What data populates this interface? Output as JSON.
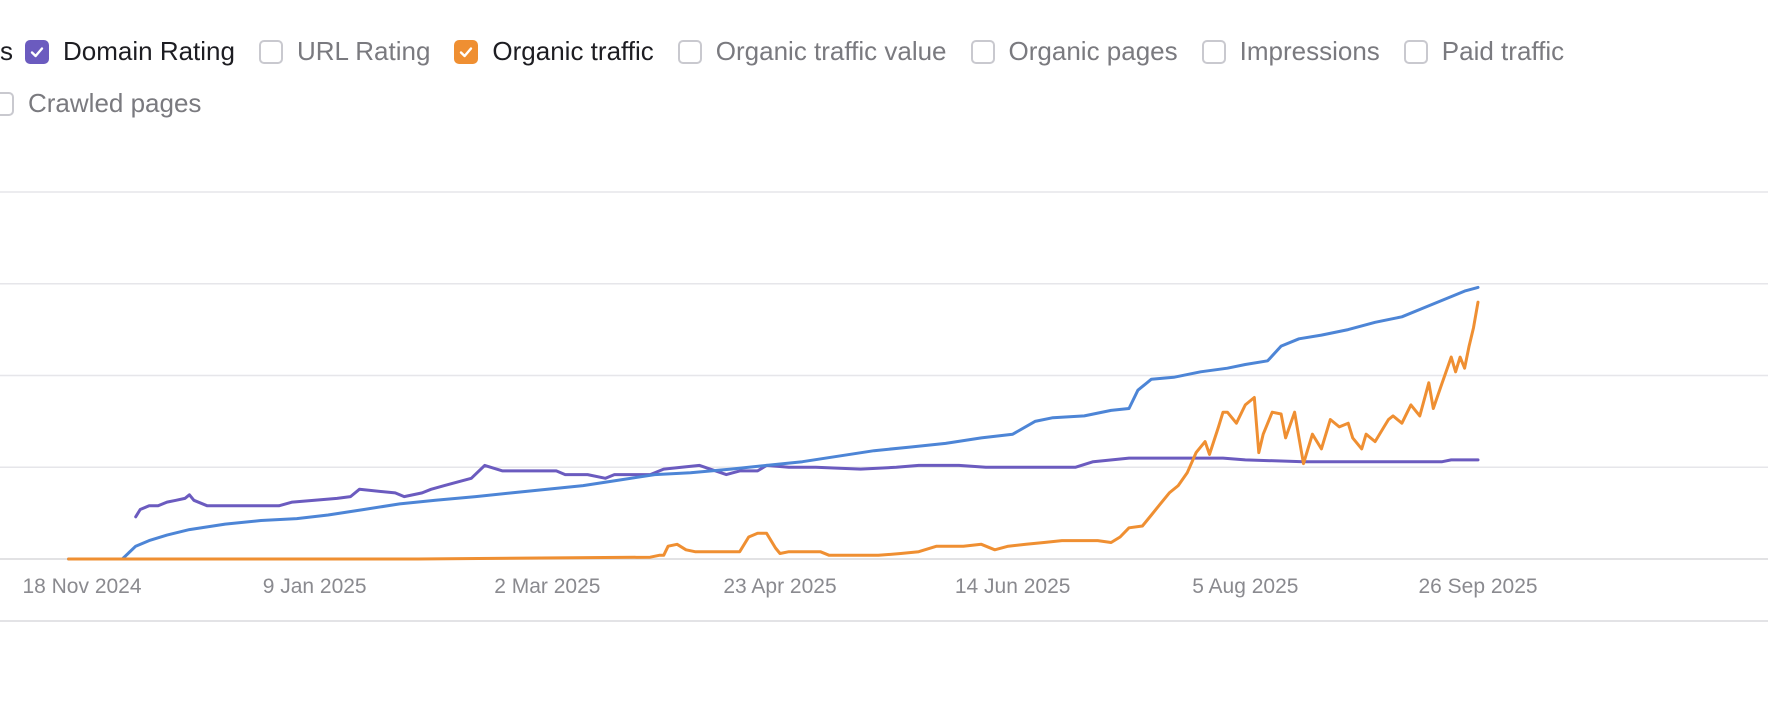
{
  "legend": {
    "partial_left_label": "s",
    "items": [
      {
        "label": "Domain Rating",
        "checked": true,
        "color": "#6b5bbf",
        "icon": "checkbox-icon"
      },
      {
        "label": "URL Rating",
        "checked": false,
        "icon": "checkbox-icon"
      },
      {
        "label": "Organic traffic",
        "checked": true,
        "color": "#ef8f32",
        "icon": "checkbox-icon"
      },
      {
        "label": "Organic traffic value",
        "checked": false,
        "icon": "checkbox-icon"
      },
      {
        "label": "Organic pages",
        "checked": false,
        "icon": "checkbox-icon"
      },
      {
        "label": "Impressions",
        "checked": false,
        "icon": "checkbox-icon"
      },
      {
        "label": "Paid traffic",
        "checked": false,
        "icon": "checkbox-icon"
      },
      {
        "label": "Crawled pages",
        "checked": false,
        "icon": "checkbox-icon"
      }
    ]
  },
  "chart_data": {
    "type": "line",
    "x_ticks": [
      "18 Nov 2024",
      "9 Jan 2025",
      "2 Mar 2025",
      "23 Apr 2025",
      "14 Jun 2025",
      "5 Aug 2025",
      "26 Sep 2025"
    ],
    "gridlines": 5,
    "y_axis_labels_visible": false,
    "ylim": [
      0,
      100
    ],
    "series": [
      {
        "color": "#6b5bbf",
        "width": 3,
        "points": [
          [
            "2024-11-30",
            11.5
          ],
          [
            "2024-12-01",
            13.5
          ],
          [
            "2024-12-03",
            14.5
          ],
          [
            "2024-12-05",
            14.5
          ],
          [
            "2024-12-07",
            15.5
          ],
          [
            "2024-12-09",
            16
          ],
          [
            "2024-12-11",
            16.5
          ],
          [
            "2024-12-12",
            17.5
          ],
          [
            "2024-12-13",
            16
          ],
          [
            "2024-12-16",
            14.5
          ],
          [
            "2025-01-01",
            14.5
          ],
          [
            "2025-01-04",
            15.5
          ],
          [
            "2025-01-09",
            16
          ],
          [
            "2025-01-14",
            16.5
          ],
          [
            "2025-01-17",
            17
          ],
          [
            "2025-01-19",
            19
          ],
          [
            "2025-01-27",
            18
          ],
          [
            "2025-01-29",
            17
          ],
          [
            "2025-02-02",
            18
          ],
          [
            "2025-02-04",
            19
          ],
          [
            "2025-02-07",
            20
          ],
          [
            "2025-02-10",
            21
          ],
          [
            "2025-02-13",
            22
          ],
          [
            "2025-02-16",
            25.5
          ],
          [
            "2025-02-20",
            24
          ],
          [
            "2025-02-24",
            24
          ],
          [
            "2025-03-04",
            24
          ],
          [
            "2025-03-06",
            23
          ],
          [
            "2025-03-08",
            23
          ],
          [
            "2025-03-11",
            23
          ],
          [
            "2025-03-15",
            22
          ],
          [
            "2025-03-17",
            23
          ],
          [
            "2025-03-20",
            23
          ],
          [
            "2025-03-25",
            23
          ],
          [
            "2025-03-28",
            24.5
          ],
          [
            "2025-04-05",
            25.5
          ],
          [
            "2025-04-11",
            23
          ],
          [
            "2025-04-14",
            24
          ],
          [
            "2025-04-18",
            24
          ],
          [
            "2025-04-20",
            25.5
          ],
          [
            "2025-04-25",
            25
          ],
          [
            "2025-05-01",
            25
          ],
          [
            "2025-05-11",
            24.5
          ],
          [
            "2025-05-19",
            25
          ],
          [
            "2025-05-24",
            25.5
          ],
          [
            "2025-06-02",
            25.5
          ],
          [
            "2025-06-08",
            25
          ],
          [
            "2025-06-17",
            25
          ],
          [
            "2025-06-25",
            25
          ],
          [
            "2025-06-28",
            25
          ],
          [
            "2025-07-02",
            26.5
          ],
          [
            "2025-07-10",
            27.5
          ],
          [
            "2025-07-21",
            27.5
          ],
          [
            "2025-07-31",
            27.5
          ],
          [
            "2025-08-05",
            27
          ],
          [
            "2025-08-18",
            26.5
          ],
          [
            "2025-08-28",
            26.5
          ],
          [
            "2025-09-07",
            26.5
          ],
          [
            "2025-09-18",
            26.5
          ],
          [
            "2025-09-20",
            27
          ],
          [
            "2025-09-26",
            27
          ]
        ]
      },
      {
        "color": "#4d85d6",
        "width": 3,
        "points": [
          [
            "2024-11-15",
            0
          ],
          [
            "2024-11-27",
            0
          ],
          [
            "2024-11-30",
            3.5
          ],
          [
            "2024-12-03",
            5
          ],
          [
            "2024-12-07",
            6.5
          ],
          [
            "2024-12-12",
            8
          ],
          [
            "2024-12-20",
            9.5
          ],
          [
            "2024-12-28",
            10.5
          ],
          [
            "2025-01-05",
            11
          ],
          [
            "2025-01-12",
            12
          ],
          [
            "2025-01-20",
            13.5
          ],
          [
            "2025-01-28",
            15
          ],
          [
            "2025-02-05",
            16
          ],
          [
            "2025-02-14",
            17
          ],
          [
            "2025-02-22",
            18
          ],
          [
            "2025-03-02",
            19
          ],
          [
            "2025-03-10",
            20
          ],
          [
            "2025-03-18",
            21.5
          ],
          [
            "2025-03-26",
            23
          ],
          [
            "2025-04-03",
            23.5
          ],
          [
            "2025-04-12",
            24.5
          ],
          [
            "2025-04-20",
            25.5
          ],
          [
            "2025-04-28",
            26.5
          ],
          [
            "2025-05-06",
            28
          ],
          [
            "2025-05-14",
            29.5
          ],
          [
            "2025-05-22",
            30.5
          ],
          [
            "2025-05-30",
            31.5
          ],
          [
            "2025-06-07",
            33
          ],
          [
            "2025-06-14",
            34
          ],
          [
            "2025-06-19",
            37.5
          ],
          [
            "2025-06-23",
            38.5
          ],
          [
            "2025-06-30",
            39
          ],
          [
            "2025-07-06",
            40.5
          ],
          [
            "2025-07-10",
            41
          ],
          [
            "2025-07-12",
            46
          ],
          [
            "2025-07-15",
            49
          ],
          [
            "2025-07-20",
            49.5
          ],
          [
            "2025-07-26",
            51
          ],
          [
            "2025-08-01",
            52
          ],
          [
            "2025-08-05",
            53
          ],
          [
            "2025-08-10",
            54
          ],
          [
            "2025-08-13",
            58
          ],
          [
            "2025-08-17",
            60
          ],
          [
            "2025-08-22",
            61
          ],
          [
            "2025-08-28",
            62.5
          ],
          [
            "2025-09-03",
            64.5
          ],
          [
            "2025-09-09",
            66
          ],
          [
            "2025-09-14",
            68.5
          ],
          [
            "2025-09-20",
            71.5
          ],
          [
            "2025-09-23",
            73
          ],
          [
            "2025-09-26",
            74
          ]
        ]
      },
      {
        "color": "#ef8f32",
        "width": 3,
        "points": [
          [
            "2024-11-15",
            0
          ],
          [
            "2025-02-01",
            0
          ],
          [
            "2025-03-25",
            0.5
          ],
          [
            "2025-03-27",
            1
          ],
          [
            "2025-03-28",
            1
          ],
          [
            "2025-03-29",
            3.5
          ],
          [
            "2025-03-31",
            4
          ],
          [
            "2025-04-02",
            2.5
          ],
          [
            "2025-04-04",
            2
          ],
          [
            "2025-04-07",
            2
          ],
          [
            "2025-04-10",
            2
          ],
          [
            "2025-04-14",
            2
          ],
          [
            "2025-04-16",
            6
          ],
          [
            "2025-04-18",
            7
          ],
          [
            "2025-04-20",
            7
          ],
          [
            "2025-04-22",
            3
          ],
          [
            "2025-04-23",
            1.5
          ],
          [
            "2025-04-25",
            2
          ],
          [
            "2025-04-29",
            2
          ],
          [
            "2025-05-02",
            2
          ],
          [
            "2025-05-04",
            1
          ],
          [
            "2025-05-10",
            1
          ],
          [
            "2025-05-15",
            1
          ],
          [
            "2025-05-20",
            1.5
          ],
          [
            "2025-05-24",
            2
          ],
          [
            "2025-05-28",
            3.5
          ],
          [
            "2025-06-03",
            3.5
          ],
          [
            "2025-06-07",
            4
          ],
          [
            "2025-06-10",
            2.5
          ],
          [
            "2025-06-13",
            3.5
          ],
          [
            "2025-06-17",
            4
          ],
          [
            "2025-06-21",
            4.5
          ],
          [
            "2025-06-25",
            5
          ],
          [
            "2025-06-28",
            5
          ],
          [
            "2025-07-03",
            5
          ],
          [
            "2025-07-06",
            4.5
          ],
          [
            "2025-07-08",
            6
          ],
          [
            "2025-07-10",
            8.5
          ],
          [
            "2025-07-13",
            9
          ],
          [
            "2025-07-15",
            12
          ],
          [
            "2025-07-17",
            15
          ],
          [
            "2025-07-19",
            18
          ],
          [
            "2025-07-21",
            20
          ],
          [
            "2025-07-23",
            23.5
          ],
          [
            "2025-07-25",
            29
          ],
          [
            "2025-07-27",
            32
          ],
          [
            "2025-07-28",
            28.5
          ],
          [
            "2025-07-30",
            36
          ],
          [
            "2025-07-31",
            40
          ],
          [
            "2025-08-01",
            40
          ],
          [
            "2025-08-03",
            37
          ],
          [
            "2025-08-05",
            42
          ],
          [
            "2025-08-07",
            44
          ],
          [
            "2025-08-08",
            29
          ],
          [
            "2025-08-09",
            34
          ],
          [
            "2025-08-11",
            40
          ],
          [
            "2025-08-13",
            39.5
          ],
          [
            "2025-08-14",
            33
          ],
          [
            "2025-08-16",
            40
          ],
          [
            "2025-08-17",
            33
          ],
          [
            "2025-08-18",
            26
          ],
          [
            "2025-08-20",
            34
          ],
          [
            "2025-08-22",
            30
          ],
          [
            "2025-08-24",
            38
          ],
          [
            "2025-08-26",
            36
          ],
          [
            "2025-08-28",
            37
          ],
          [
            "2025-08-29",
            33
          ],
          [
            "2025-08-31",
            30
          ],
          [
            "2025-09-01",
            34
          ],
          [
            "2025-09-03",
            32
          ],
          [
            "2025-09-05",
            36
          ],
          [
            "2025-09-06",
            38
          ],
          [
            "2025-09-07",
            39
          ],
          [
            "2025-09-09",
            37
          ],
          [
            "2025-09-11",
            42
          ],
          [
            "2025-09-13",
            39
          ],
          [
            "2025-09-15",
            48
          ],
          [
            "2025-09-16",
            41
          ],
          [
            "2025-09-18",
            48
          ],
          [
            "2025-09-20",
            55
          ],
          [
            "2025-09-21",
            51
          ],
          [
            "2025-09-22",
            55
          ],
          [
            "2025-09-23",
            52
          ],
          [
            "2025-09-24",
            58
          ],
          [
            "2025-09-25",
            63
          ],
          [
            "2025-09-26",
            70
          ]
        ]
      }
    ]
  }
}
